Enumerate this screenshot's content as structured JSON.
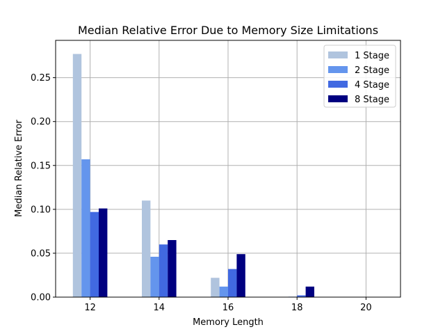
{
  "chart_data": {
    "type": "bar",
    "title": "Median Relative Error Due to Memory Size Limitations",
    "xlabel": "Memory Length",
    "ylabel": "Median Relative Error",
    "categories": [
      "12",
      "14",
      "16",
      "18",
      "20"
    ],
    "xticks": [
      "12",
      "14",
      "16",
      "18",
      "20"
    ],
    "yticks": [
      "0.00",
      "0.05",
      "0.10",
      "0.15",
      "0.20",
      "0.25"
    ],
    "ylim": [
      0,
      0.2925
    ],
    "xlim": [
      11,
      21
    ],
    "grid": true,
    "legend_position": "top-right",
    "series": [
      {
        "name": "1 Stage",
        "color": "#b0c4de",
        "values": [
          0.277,
          0.11,
          0.022,
          0.0,
          0.0
        ]
      },
      {
        "name": "2 Stage",
        "color": "#6495ed",
        "values": [
          0.157,
          0.046,
          0.012,
          0.0005,
          0.0
        ]
      },
      {
        "name": "4 Stage",
        "color": "#4169e1",
        "values": [
          0.097,
          0.06,
          0.032,
          0.002,
          0.0
        ]
      },
      {
        "name": "8 Stage",
        "color": "#000080",
        "values": [
          0.101,
          0.065,
          0.049,
          0.012,
          0.0
        ]
      }
    ]
  }
}
